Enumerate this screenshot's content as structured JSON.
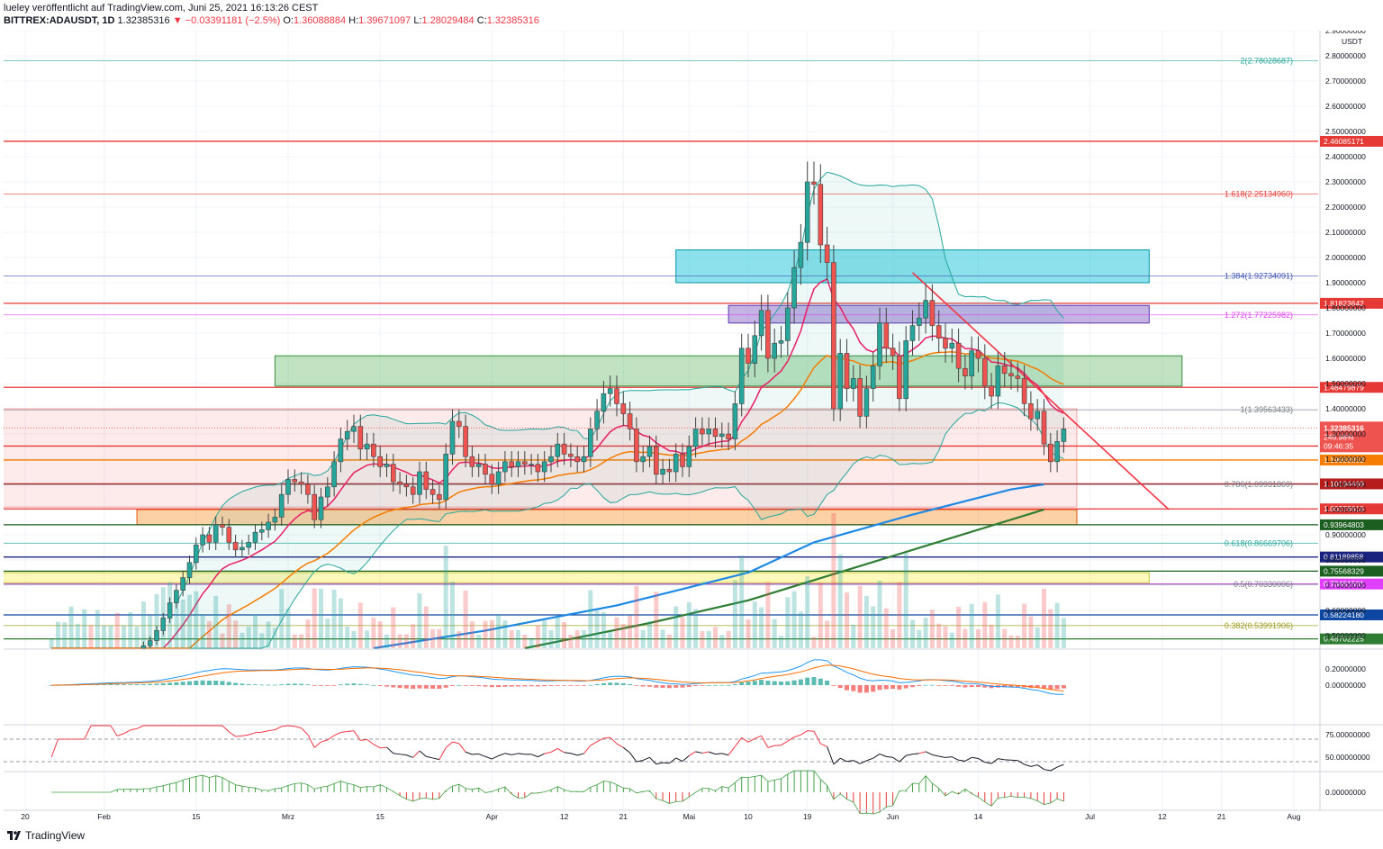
{
  "header": {
    "publisher": "lueley veröffentlicht auf TradingView.com, Juni 25, 2021 16:13:26 CEST",
    "symbol": "BITTREX:ADAUSDT, 1D",
    "last": "1.32385316",
    "change": "−0.03391181 (−2.5%)",
    "o_label": "O:",
    "o": "1.36088884",
    "h_label": "H:",
    "h": "1.39671097",
    "l_label": "L:",
    "l": "1.28029484",
    "c_label": "C:",
    "c": "1.32385316"
  },
  "footer": {
    "brand": "TradingView"
  },
  "chart_data": {
    "type": "candlestick",
    "currency": "USDT",
    "price_range": [
      0.45,
      2.9
    ],
    "price_ticks": [
      "2.90000000",
      "2.80000000",
      "2.70000000",
      "2.60000000",
      "2.50000000",
      "2.40000000",
      "2.30000000",
      "2.20000000",
      "2.10000000",
      "2.00000000",
      "1.90000000",
      "1.80000000",
      "1.70000000",
      "1.60000000",
      "1.50000000",
      "1.40000000",
      "1.30000000",
      "1.20000000",
      "1.10000000",
      "1.00000000",
      "0.90000000",
      "0.80000000",
      "0.70000000",
      "0.60000000",
      "0.50000000"
    ],
    "date_labels": [
      {
        "label": "20",
        "day": 0
      },
      {
        "label": "Feb",
        "day": 12
      },
      {
        "label": "15",
        "day": 26
      },
      {
        "label": "Mrz",
        "day": 40
      },
      {
        "label": "15",
        "day": 54
      },
      {
        "label": "Apr",
        "day": 71
      },
      {
        "label": "12",
        "day": 82
      },
      {
        "label": "21",
        "day": 91
      },
      {
        "label": "Mai",
        "day": 101
      },
      {
        "label": "10",
        "day": 110
      },
      {
        "label": "19",
        "day": 119
      },
      {
        "label": "Jun",
        "day": 132
      },
      {
        "label": "14",
        "day": 145
      },
      {
        "label": "Jul",
        "day": 162
      },
      {
        "label": "12",
        "day": 173
      },
      {
        "label": "21",
        "day": 182
      },
      {
        "label": "Aug",
        "day": 193
      }
    ],
    "last_day": 155,
    "closes": [
      0.31,
      0.32,
      0.33,
      0.35,
      0.36,
      0.38,
      0.37,
      0.39,
      0.4,
      0.41,
      0.39,
      0.4,
      0.42,
      0.43,
      0.46,
      0.48,
      0.52,
      0.57,
      0.63,
      0.68,
      0.73,
      0.79,
      0.86,
      0.9,
      0.87,
      0.94,
      0.93,
      0.87,
      0.84,
      0.85,
      0.87,
      0.91,
      0.92,
      0.95,
      0.97,
      1.06,
      1.12,
      1.11,
      1.1,
      1.06,
      0.96,
      1.05,
      1.09,
      1.19,
      1.28,
      1.31,
      1.33,
      1.24,
      1.26,
      1.21,
      1.17,
      1.18,
      1.11,
      1.1,
      1.09,
      1.06,
      1.15,
      1.08,
      1.06,
      1.04,
      1.22,
      1.35,
      1.33,
      1.21,
      1.17,
      1.18,
      1.14,
      1.1,
      1.15,
      1.19,
      1.17,
      1.19,
      1.18,
      1.18,
      1.15,
      1.19,
      1.21,
      1.26,
      1.22,
      1.21,
      1.19,
      1.21,
      1.32,
      1.39,
      1.46,
      1.48,
      1.42,
      1.38,
      1.32,
      1.19,
      1.21,
      1.25,
      1.14,
      1.16,
      1.15,
      1.22,
      1.17,
      1.25,
      1.32,
      1.3,
      1.32,
      1.29,
      1.3,
      1.28,
      1.42,
      1.64,
      1.58,
      1.69,
      1.79,
      1.6,
      1.66,
      1.67,
      1.8,
      1.96,
      2.06,
      2.3,
      2.29,
      2.05,
      1.98,
      1.4,
      1.62,
      1.48,
      1.52,
      1.37,
      1.48,
      1.57,
      1.74,
      1.64,
      1.61,
      1.44,
      1.67,
      1.73,
      1.76,
      1.83,
      1.73,
      1.68,
      1.64,
      1.66,
      1.56,
      1.53,
      1.63,
      1.6,
      1.49,
      1.45,
      1.57,
      1.54,
      1.53,
      1.52,
      1.42,
      1.36,
      1.39,
      1.26,
      1.19,
      1.27,
      1.32
    ],
    "levels": [
      {
        "price": 2.46085171,
        "label": "2.46085171",
        "color": "#e53935"
      },
      {
        "price": 1.81823642,
        "label": "1.81823642",
        "color": "#e53935"
      },
      {
        "price": 1.48479879,
        "label": "1.48479879",
        "color": "#e53935"
      },
      {
        "price": 1.25203384,
        "label": "1.25203384",
        "color": "#e53935"
      },
      {
        "price": 1.19668853,
        "label": "1.19668853",
        "color": "#f57c00"
      },
      {
        "price": 1.10194469,
        "label": "1.10194469",
        "color": "#b71c1c"
      },
      {
        "price": 1.00278618,
        "label": "1.00278618",
        "color": "#e53935"
      },
      {
        "price": 0.93964803,
        "label": "0.93964803",
        "color": "#1b5e20"
      },
      {
        "price": 0.81189858,
        "label": "0.81189858",
        "color": "#1a237e"
      },
      {
        "price": 0.75568329,
        "label": "0.75568329",
        "color": "#1b5e20"
      },
      {
        "price": 0.70481501,
        "label": "0.70481501",
        "color": "#e040fb"
      },
      {
        "price": 0.5822418,
        "label": "0.58224180",
        "color": "#0d47a1"
      },
      {
        "price": 0.48702225,
        "label": "0.48702225",
        "color": "#2e7d32"
      }
    ],
    "fib_levels": [
      {
        "price": 2.78028687,
        "label": "2(2.78028687)",
        "color": "#26a69a"
      },
      {
        "price": 2.2513496,
        "label": "1.618(2.25134960)",
        "color": "#e53935"
      },
      {
        "price": 1.92734091,
        "label": "1.384(1.92734091)",
        "color": "#3f51b5"
      },
      {
        "price": 1.77225982,
        "label": "1.272(1.77225982)",
        "color": "#e040fb"
      },
      {
        "price": 1.39563433,
        "label": "1(1.39563433)",
        "color": "#787b86"
      },
      {
        "price": 1.09931869,
        "label": "0.786(1.09931869)",
        "color": "#787b86"
      },
      {
        "price": 0.86669706,
        "label": "0.618(0.86669706)",
        "color": "#26a69a"
      },
      {
        "price": 0.70330006,
        "label": "0.5(0.70330006)",
        "color": "#787b86"
      },
      {
        "price": 0.53991906,
        "label": "0.382(0.53991906)",
        "color": "#9e9d24"
      }
    ],
    "last_price_label": "1.32385316",
    "last_pct_label": "246.98%",
    "countdown_label": "09:46:35",
    "oscillator_ticks": [
      {
        "label": "0.20000000",
        "pane": "macd",
        "value": 0.2
      },
      {
        "label": "0.00000000",
        "pane": "macd",
        "value": 0.0
      },
      {
        "label": "75.00000000",
        "pane": "rsi",
        "value": 75
      },
      {
        "label": "50.00000000",
        "pane": "rsi",
        "value": 50
      },
      {
        "label": "0.00000000",
        "pane": "mom",
        "value": 0
      }
    ]
  }
}
